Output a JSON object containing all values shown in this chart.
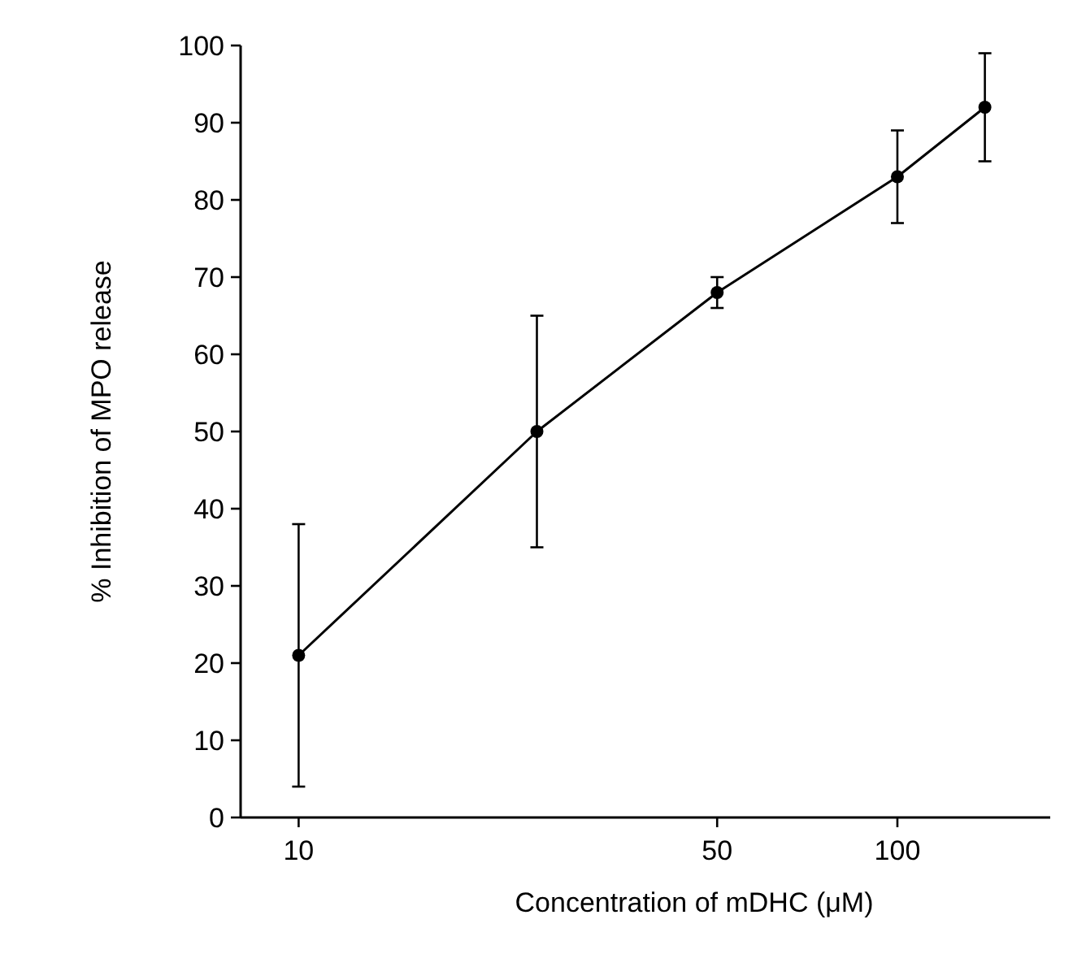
{
  "chart_data": {
    "type": "line",
    "xlabel": "Concentration of mDHC (μM)",
    "ylabel": "% Inhibition of MPO release",
    "log": "x",
    "x": [
      10,
      25,
      50,
      100,
      140
    ],
    "series": [
      {
        "color": "#000000",
        "values": [
          21,
          50,
          68,
          83,
          92
        ],
        "errors": [
          [
            4,
            38
          ],
          [
            35,
            65
          ],
          [
            66,
            70
          ],
          [
            77,
            89
          ],
          [
            85,
            99
          ]
        ]
      }
    ],
    "xlim": [
      8,
      180
    ],
    "xticks": [
      10,
      50,
      100
    ],
    "ylim": [
      0,
      100
    ],
    "yticks": [
      0,
      10,
      20,
      30,
      40,
      50,
      60,
      70,
      80,
      90,
      100
    ],
    "marker": "circle",
    "line_style": "solid"
  }
}
